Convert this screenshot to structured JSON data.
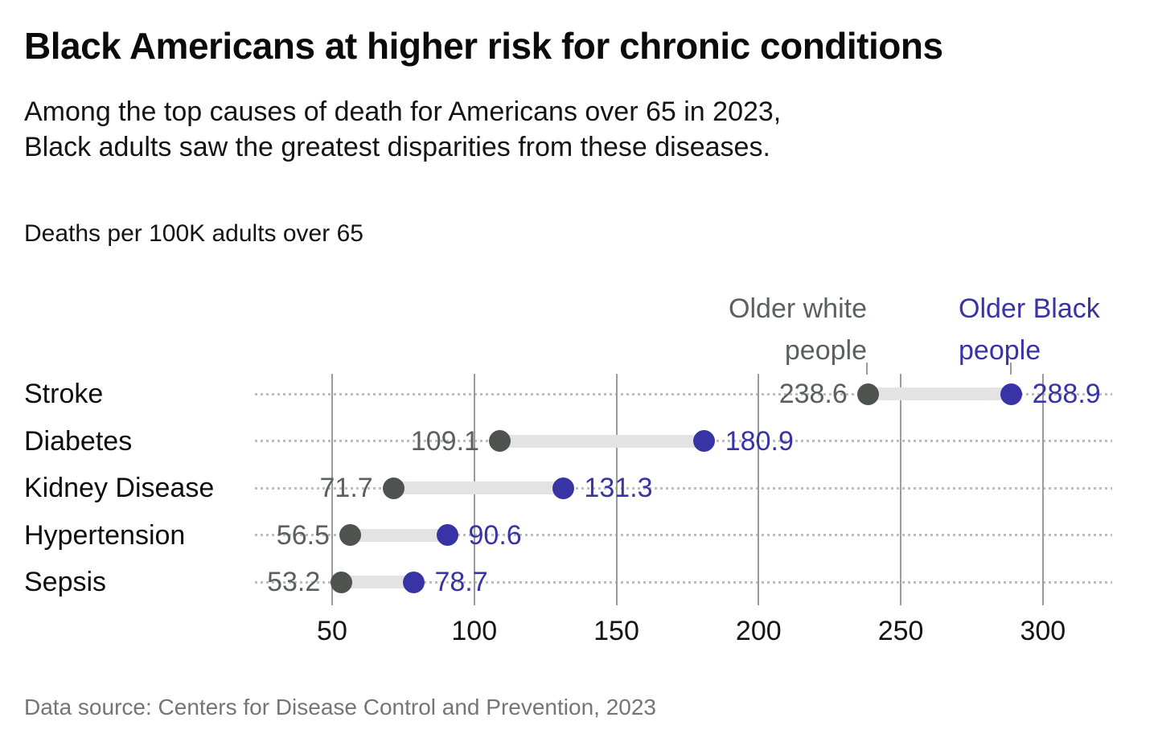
{
  "header": {
    "title": "Black Americans at higher risk for chronic conditions",
    "subtitle_line1": "Among the top causes of death for Americans over 65 in 2023,",
    "subtitle_line2": "Black adults saw the greatest disparities from these diseases.",
    "units_label": "Deaths per 100K adults over 65"
  },
  "legend": {
    "white": {
      "line1": "Older white",
      "line2": "people",
      "color": "#5A615D"
    },
    "black": {
      "line1": "Older Black",
      "line2": "people",
      "color": "#3934A6"
    }
  },
  "chart_data": {
    "type": "dumbbell",
    "title": "Black Americans at higher risk for chronic conditions",
    "value_axis_label": "Deaths per 100K adults over 65",
    "categories": [
      "Stroke",
      "Diabetes",
      "Kidney Disease",
      "Hypertension",
      "Sepsis"
    ],
    "series": [
      {
        "name": "Older white people",
        "values": [
          238.6,
          109.1,
          71.7,
          56.5,
          53.2
        ],
        "dot_color": "#4E534F",
        "label_color": "#5A615D"
      },
      {
        "name": "Older Black people",
        "values": [
          288.9,
          180.9,
          131.3,
          90.6,
          78.7
        ],
        "dot_color": "#3934A6",
        "label_color": "#3934A6"
      }
    ],
    "x_ticks": [
      50,
      100,
      150,
      200,
      250,
      300
    ],
    "xlim": [
      22.8,
      324.3
    ],
    "grid": "vertical",
    "legend_position": "top-right",
    "colors": {
      "connector_band": "#e3e3e3",
      "leader_dots": "#bdbdbd",
      "gridline": "#9b9b9b"
    }
  },
  "footer": {
    "source": "Data source: Centers for Disease Control and Prevention, 2023"
  }
}
